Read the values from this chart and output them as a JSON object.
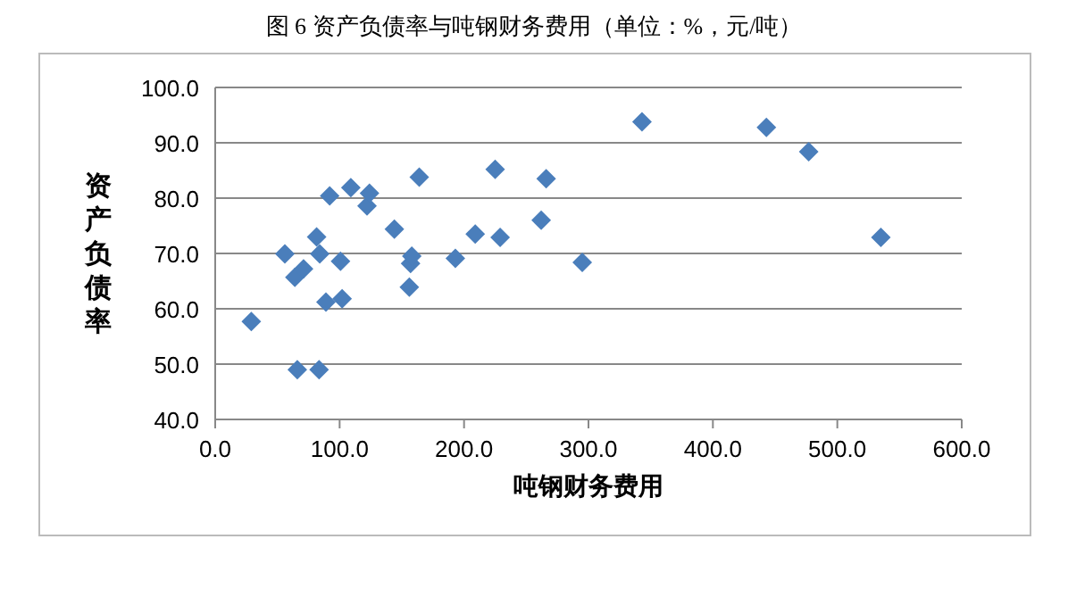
{
  "chart_data": {
    "type": "scatter",
    "title": "图 6    资产负债率与吨钢财务费用（单位：%，元/吨）",
    "xlabel": "吨钢财务费用",
    "ylabel": "资产负债率",
    "marker": "diamond",
    "grid": "y",
    "series": [
      {
        "color": "#4a7ebb",
        "x": [
          29,
          56,
          64,
          71,
          81.5,
          84,
          66,
          83.5,
          89,
          92,
          100.7,
          102,
          109,
          122,
          124,
          144,
          156,
          157,
          158,
          164,
          193,
          209,
          225,
          229,
          262,
          266,
          295,
          343,
          443,
          477,
          535
        ],
        "values": [
          57.7,
          69.9,
          65.7,
          67.2,
          73,
          69.9,
          49,
          49,
          61.2,
          80.4,
          68.6,
          61.8,
          81.9,
          78.6,
          80.9,
          74.4,
          63.9,
          68.2,
          69.5,
          83.8,
          69.1,
          73.5,
          85.2,
          72.9,
          76,
          83.5,
          68.4,
          93.8,
          92.8,
          88.4,
          72.9
        ]
      }
    ],
    "xlim": [
      0,
      600
    ],
    "xticks": [
      {
        "value": 0,
        "label": "0.0"
      },
      {
        "value": 100,
        "label": "100.0"
      },
      {
        "value": 200,
        "label": "200.0"
      },
      {
        "value": 300,
        "label": "300.0"
      },
      {
        "value": 400,
        "label": "400.0"
      },
      {
        "value": 500,
        "label": "500.0"
      },
      {
        "value": 600,
        "label": "600.0"
      }
    ],
    "ylim": [
      40,
      100
    ],
    "yticks": [
      {
        "value": 40,
        "label": "40.0"
      },
      {
        "value": 50,
        "label": "50.0"
      },
      {
        "value": 60,
        "label": "60.0"
      },
      {
        "value": 70,
        "label": "70.0"
      },
      {
        "value": 80,
        "label": "80.0"
      },
      {
        "value": 90,
        "label": "90.0"
      },
      {
        "value": 100,
        "label": "100.0"
      }
    ]
  }
}
